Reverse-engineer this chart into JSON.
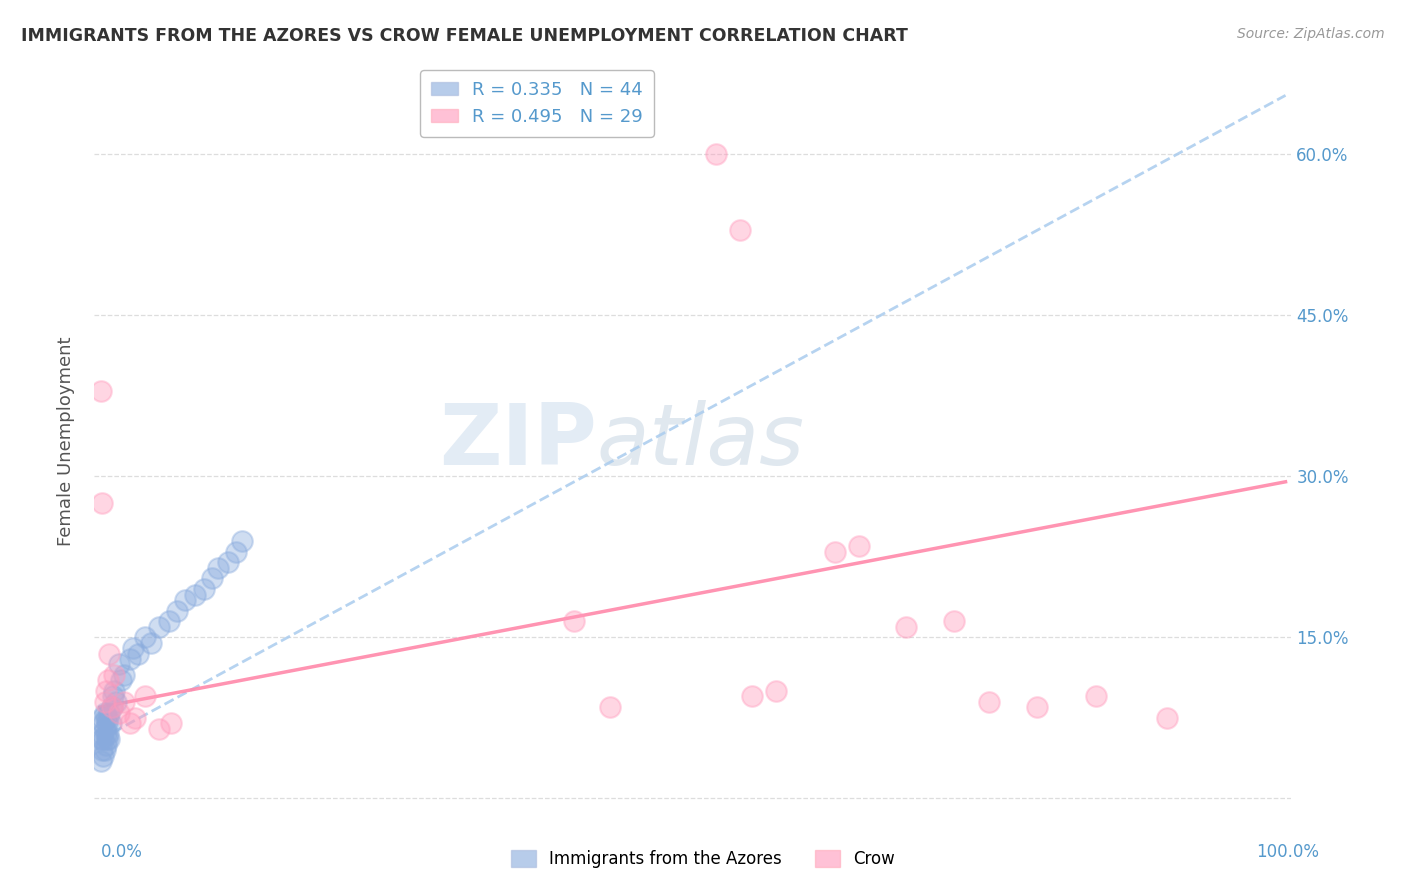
{
  "title": "IMMIGRANTS FROM THE AZORES VS CROW FEMALE UNEMPLOYMENT CORRELATION CHART",
  "source": "Source: ZipAtlas.com",
  "ylabel": "Female Unemployment",
  "legend_blue_r": "R = 0.335",
  "legend_blue_n": "N = 44",
  "legend_pink_r": "R = 0.495",
  "legend_pink_n": "N = 29",
  "legend_label_blue": "Immigrants from the Azores",
  "legend_label_pink": "Crow",
  "yticks": [
    0.0,
    0.15,
    0.3,
    0.45,
    0.6
  ],
  "ytick_labels": [
    "",
    "15.0%",
    "30.0%",
    "45.0%",
    "60.0%"
  ],
  "blue_color": "#88AADD",
  "pink_color": "#FF99BB",
  "blue_scatter_x": [
    0.001,
    0.001,
    0.002,
    0.002,
    0.002,
    0.003,
    0.003,
    0.003,
    0.004,
    0.004,
    0.004,
    0.005,
    0.005,
    0.005,
    0.006,
    0.006,
    0.007,
    0.007,
    0.008,
    0.008,
    0.009,
    0.01,
    0.011,
    0.012,
    0.014,
    0.016,
    0.018,
    0.02,
    0.025,
    0.028,
    0.032,
    0.038,
    0.043,
    0.05,
    0.058,
    0.065,
    0.072,
    0.08,
    0.088,
    0.095,
    0.1,
    0.108,
    0.115,
    0.12
  ],
  "blue_scatter_y": [
    0.035,
    0.055,
    0.045,
    0.06,
    0.075,
    0.04,
    0.055,
    0.07,
    0.045,
    0.065,
    0.08,
    0.05,
    0.06,
    0.075,
    0.055,
    0.07,
    0.06,
    0.075,
    0.055,
    0.08,
    0.07,
    0.085,
    0.095,
    0.1,
    0.09,
    0.125,
    0.11,
    0.115,
    0.13,
    0.14,
    0.135,
    0.15,
    0.145,
    0.16,
    0.165,
    0.175,
    0.185,
    0.19,
    0.195,
    0.205,
    0.215,
    0.22,
    0.23,
    0.24
  ],
  "pink_scatter_x": [
    0.001,
    0.002,
    0.004,
    0.005,
    0.007,
    0.008,
    0.01,
    0.012,
    0.016,
    0.02,
    0.025,
    0.03,
    0.038,
    0.05,
    0.06,
    0.4,
    0.43,
    0.52,
    0.54,
    0.55,
    0.57,
    0.62,
    0.64,
    0.68,
    0.72,
    0.75,
    0.79,
    0.84,
    0.9
  ],
  "pink_scatter_y": [
    0.38,
    0.275,
    0.09,
    0.1,
    0.11,
    0.135,
    0.085,
    0.115,
    0.08,
    0.09,
    0.07,
    0.075,
    0.095,
    0.065,
    0.07,
    0.165,
    0.085,
    0.6,
    0.53,
    0.095,
    0.1,
    0.23,
    0.235,
    0.16,
    0.165,
    0.09,
    0.085,
    0.095,
    0.075
  ],
  "blue_line_x": [
    0.0,
    1.0
  ],
  "blue_line_y": [
    0.055,
    0.655
  ],
  "pink_line_x": [
    0.0,
    1.0
  ],
  "pink_line_y": [
    0.085,
    0.295
  ],
  "background_color": "#FFFFFF",
  "watermark_text": "ZIPatlas",
  "title_color": "#333333",
  "axis_label_color": "#555555",
  "tick_color": "#5599CC",
  "grid_color": "#DDDDDD",
  "xlim": [
    -0.005,
    1.005
  ],
  "ylim": [
    -0.015,
    0.68
  ]
}
